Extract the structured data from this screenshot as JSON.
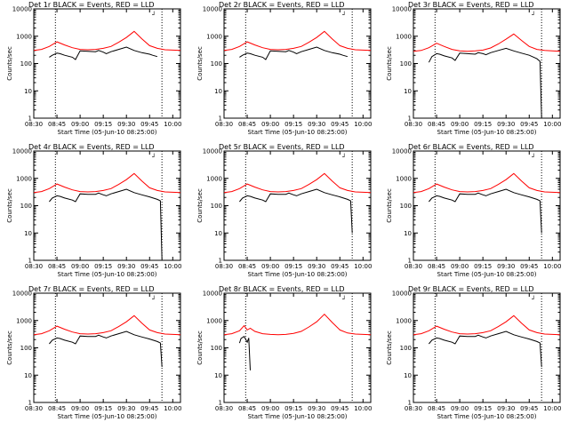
{
  "common": {
    "xlabel": "Start Time (05-Jun-10 08:25:00)",
    "ylabel": "Counts/sec",
    "x_ticks": [
      "08:30",
      "08:45",
      "09:00",
      "09:15",
      "09:30",
      "09:45",
      "10:00"
    ],
    "y_ticks": [
      "1",
      "10",
      "100",
      "1000",
      "10000"
    ],
    "legend_glyph": "┘",
    "colors": {
      "events": "#000000",
      "lld": "#ff0000",
      "axes": "#000000"
    }
  },
  "chart_data": [
    {
      "type": "line",
      "title": "Det 1r BLACK = Events, RED = LLD",
      "xlabel": "Start Time (05-Jun-10 08:25:00)",
      "ylabel": "Counts/sec",
      "xlim": [
        510,
        605
      ],
      "ylim": [
        1,
        10000
      ],
      "yscale": "log",
      "grid": false,
      "vlines": [
        524,
        593
      ],
      "series": [
        {
          "color": "#ff0000",
          "x": [
            510,
            515,
            520,
            525,
            530,
            535,
            540,
            545,
            550,
            555,
            560,
            565,
            570,
            575,
            580,
            585,
            590,
            595,
            600,
            605
          ],
          "values": [
            300,
            330,
            420,
            620,
            480,
            380,
            330,
            320,
            330,
            360,
            420,
            600,
            900,
            1500,
            800,
            450,
            360,
            320,
            310,
            300
          ]
        },
        {
          "color": "#000000",
          "x": [
            520,
            522,
            525,
            527,
            530,
            535,
            537,
            540,
            545,
            550,
            552,
            555,
            557,
            560,
            565,
            570,
            575,
            580,
            585,
            587,
            590
          ],
          "values": [
            170,
            200,
            240,
            230,
            200,
            170,
            140,
            290,
            280,
            270,
            300,
            260,
            230,
            270,
            330,
            400,
            300,
            250,
            220,
            200,
            180
          ]
        }
      ]
    },
    {
      "type": "line",
      "title": "Det 2r BLACK = Events, RED = LLD",
      "xlabel": "Start Time (05-Jun-10 08:25:00)",
      "ylabel": "Counts/sec",
      "xlim": [
        510,
        605
      ],
      "ylim": [
        1,
        10000
      ],
      "yscale": "log",
      "grid": false,
      "vlines": [
        524,
        593
      ],
      "series": [
        {
          "color": "#ff0000",
          "x": [
            510,
            515,
            520,
            525,
            530,
            535,
            540,
            545,
            550,
            555,
            560,
            565,
            570,
            575,
            580,
            585,
            590,
            595,
            600,
            605
          ],
          "values": [
            300,
            330,
            420,
            620,
            480,
            380,
            330,
            320,
            330,
            360,
            420,
            600,
            900,
            1500,
            800,
            450,
            360,
            320,
            310,
            300
          ]
        },
        {
          "color": "#000000",
          "x": [
            520,
            522,
            525,
            527,
            530,
            535,
            537,
            540,
            545,
            550,
            552,
            555,
            557,
            560,
            565,
            570,
            575,
            580,
            585,
            587,
            590
          ],
          "values": [
            170,
            200,
            240,
            230,
            200,
            170,
            140,
            290,
            280,
            270,
            300,
            260,
            230,
            270,
            330,
            400,
            300,
            250,
            220,
            200,
            180
          ]
        }
      ]
    },
    {
      "type": "line",
      "title": "Det 3r BLACK = Events, RED = LLD",
      "xlabel": "Start Time (05-Jun-10 08:25:00)",
      "ylabel": "Counts/sec",
      "xlim": [
        510,
        605
      ],
      "ylim": [
        1,
        10000
      ],
      "yscale": "log",
      "grid": false,
      "vlines": [
        524,
        593
      ],
      "series": [
        {
          "color": "#ff0000",
          "x": [
            510,
            515,
            520,
            525,
            530,
            535,
            540,
            545,
            550,
            555,
            560,
            565,
            570,
            575,
            580,
            585,
            590,
            595,
            600,
            605
          ],
          "values": [
            280,
            300,
            380,
            550,
            420,
            330,
            290,
            280,
            290,
            310,
            370,
            520,
            780,
            1200,
            700,
            420,
            330,
            300,
            290,
            280
          ]
        },
        {
          "color": "#000000",
          "x": [
            520,
            522,
            525,
            527,
            530,
            535,
            537,
            540,
            545,
            550,
            552,
            555,
            557,
            560,
            565,
            570,
            575,
            580,
            585,
            590,
            592,
            593
          ],
          "values": [
            110,
            180,
            230,
            220,
            190,
            160,
            130,
            240,
            230,
            220,
            250,
            230,
            210,
            250,
            300,
            360,
            290,
            240,
            200,
            150,
            120,
            1
          ]
        }
      ]
    },
    {
      "type": "line",
      "title": "Det 4r BLACK = Events, RED = LLD",
      "xlabel": "Start Time (05-Jun-10 08:25:00)",
      "ylabel": "Counts/sec",
      "xlim": [
        510,
        605
      ],
      "ylim": [
        1,
        10000
      ],
      "yscale": "log",
      "grid": false,
      "vlines": [
        524,
        593
      ],
      "series": [
        {
          "color": "#ff0000",
          "x": [
            510,
            515,
            520,
            525,
            530,
            535,
            540,
            545,
            550,
            555,
            560,
            565,
            570,
            575,
            580,
            585,
            590,
            595,
            600,
            605
          ],
          "values": [
            300,
            330,
            420,
            620,
            480,
            380,
            330,
            320,
            330,
            360,
            420,
            600,
            900,
            1500,
            800,
            450,
            360,
            320,
            310,
            300
          ]
        },
        {
          "color": "#000000",
          "x": [
            520,
            522,
            525,
            527,
            530,
            535,
            537,
            540,
            545,
            550,
            552,
            555,
            557,
            560,
            565,
            570,
            575,
            580,
            585,
            590,
            592,
            593
          ],
          "values": [
            140,
            190,
            230,
            220,
            190,
            160,
            140,
            270,
            260,
            260,
            290,
            250,
            230,
            270,
            330,
            400,
            300,
            250,
            210,
            170,
            150,
            1
          ]
        }
      ]
    },
    {
      "type": "line",
      "title": "Det 5r BLACK = Events, RED = LLD",
      "xlabel": "Start Time (05-Jun-10 08:25:00)",
      "ylabel": "Counts/sec",
      "xlim": [
        510,
        605
      ],
      "ylim": [
        1,
        10000
      ],
      "yscale": "log",
      "grid": false,
      "vlines": [
        524,
        593
      ],
      "series": [
        {
          "color": "#ff0000",
          "x": [
            510,
            515,
            520,
            525,
            530,
            535,
            540,
            545,
            550,
            555,
            560,
            565,
            570,
            575,
            580,
            585,
            590,
            595,
            600,
            605
          ],
          "values": [
            300,
            330,
            420,
            620,
            480,
            380,
            330,
            320,
            330,
            360,
            420,
            600,
            900,
            1500,
            800,
            450,
            360,
            320,
            310,
            300
          ]
        },
        {
          "color": "#000000",
          "x": [
            520,
            522,
            525,
            527,
            530,
            535,
            537,
            540,
            545,
            550,
            552,
            555,
            557,
            560,
            565,
            570,
            575,
            580,
            585,
            590,
            592,
            593
          ],
          "values": [
            140,
            190,
            230,
            220,
            190,
            160,
            140,
            270,
            260,
            260,
            290,
            250,
            230,
            270,
            330,
            400,
            300,
            250,
            210,
            170,
            150,
            10
          ]
        }
      ]
    },
    {
      "type": "line",
      "title": "Det 6r BLACK = Events, RED = LLD",
      "xlabel": "Start Time (05-Jun-10 08:25:00)",
      "ylabel": "Counts/sec",
      "xlim": [
        510,
        605
      ],
      "ylim": [
        1,
        10000
      ],
      "yscale": "log",
      "grid": false,
      "vlines": [
        524,
        593
      ],
      "series": [
        {
          "color": "#ff0000",
          "x": [
            510,
            515,
            520,
            525,
            530,
            535,
            540,
            545,
            550,
            555,
            560,
            565,
            570,
            575,
            580,
            585,
            590,
            595,
            600,
            605
          ],
          "values": [
            300,
            330,
            420,
            620,
            480,
            380,
            330,
            320,
            330,
            360,
            420,
            600,
            900,
            1500,
            800,
            450,
            360,
            320,
            310,
            300
          ]
        },
        {
          "color": "#000000",
          "x": [
            520,
            522,
            525,
            527,
            530,
            535,
            537,
            540,
            545,
            550,
            552,
            555,
            557,
            560,
            565,
            570,
            575,
            580,
            585,
            590,
            592,
            593
          ],
          "values": [
            140,
            190,
            230,
            220,
            190,
            160,
            140,
            270,
            260,
            260,
            290,
            250,
            230,
            270,
            330,
            400,
            300,
            250,
            210,
            170,
            150,
            10
          ]
        }
      ]
    },
    {
      "type": "line",
      "title": "Det 7r BLACK = Events, RED = LLD",
      "xlabel": "Start Time (05-Jun-10 08:25:00)",
      "ylabel": "Counts/sec",
      "xlim": [
        510,
        605
      ],
      "ylim": [
        1,
        10000
      ],
      "yscale": "log",
      "grid": false,
      "vlines": [
        524,
        593
      ],
      "series": [
        {
          "color": "#ff0000",
          "x": [
            510,
            515,
            520,
            525,
            530,
            535,
            540,
            545,
            550,
            555,
            560,
            565,
            570,
            575,
            580,
            585,
            590,
            595,
            600,
            605
          ],
          "values": [
            300,
            330,
            420,
            620,
            480,
            380,
            330,
            320,
            330,
            360,
            420,
            600,
            900,
            1500,
            800,
            450,
            360,
            320,
            310,
            300
          ]
        },
        {
          "color": "#000000",
          "x": [
            520,
            522,
            525,
            527,
            530,
            535,
            537,
            540,
            545,
            550,
            552,
            555,
            557,
            560,
            565,
            570,
            575,
            580,
            585,
            590,
            592,
            593
          ],
          "values": [
            140,
            190,
            230,
            220,
            190,
            160,
            140,
            270,
            260,
            260,
            290,
            250,
            230,
            270,
            330,
            400,
            300,
            250,
            210,
            170,
            150,
            20
          ]
        }
      ]
    },
    {
      "type": "line",
      "title": "Det 8r BLACK = Events, RED = LLD",
      "xlabel": "Start Time (05-Jun-10 08:25:00)",
      "ylabel": "Counts/sec",
      "xlim": [
        510,
        605
      ],
      "ylim": [
        1,
        10000
      ],
      "yscale": "log",
      "grid": false,
      "vlines": [
        524,
        593
      ],
      "series": [
        {
          "color": "#ff0000",
          "x": [
            510,
            515,
            520,
            523,
            525,
            527,
            530,
            535,
            540,
            545,
            550,
            555,
            560,
            565,
            570,
            575,
            580,
            585,
            590,
            595,
            600,
            605
          ],
          "values": [
            300,
            330,
            420,
            650,
            450,
            520,
            400,
            330,
            310,
            300,
            310,
            340,
            400,
            580,
            900,
            1700,
            850,
            450,
            350,
            320,
            310,
            300
          ]
        },
        {
          "color": "#000000",
          "x": [
            520,
            521,
            523,
            525,
            526,
            527
          ],
          "values": [
            150,
            220,
            260,
            160,
            230,
            15
          ]
        }
      ]
    },
    {
      "type": "line",
      "title": "Det 9r BLACK = Events, RED = LLD",
      "xlabel": "Start Time (05-Jun-10 08:25:00)",
      "ylabel": "Counts/sec",
      "xlim": [
        510,
        605
      ],
      "ylim": [
        1,
        10000
      ],
      "yscale": "log",
      "grid": false,
      "vlines": [
        524,
        593
      ],
      "series": [
        {
          "color": "#ff0000",
          "x": [
            510,
            515,
            520,
            525,
            530,
            535,
            540,
            545,
            550,
            555,
            560,
            565,
            570,
            575,
            580,
            585,
            590,
            595,
            600,
            605
          ],
          "values": [
            300,
            330,
            420,
            620,
            480,
            380,
            330,
            320,
            330,
            360,
            420,
            600,
            900,
            1500,
            800,
            450,
            360,
            320,
            310,
            300
          ]
        },
        {
          "color": "#000000",
          "x": [
            520,
            522,
            525,
            527,
            530,
            535,
            537,
            540,
            545,
            550,
            552,
            555,
            557,
            560,
            565,
            570,
            575,
            580,
            585,
            590,
            592,
            593
          ],
          "values": [
            140,
            190,
            230,
            220,
            190,
            160,
            140,
            270,
            260,
            260,
            290,
            250,
            230,
            270,
            330,
            400,
            300,
            250,
            210,
            170,
            150,
            20
          ]
        }
      ]
    }
  ]
}
